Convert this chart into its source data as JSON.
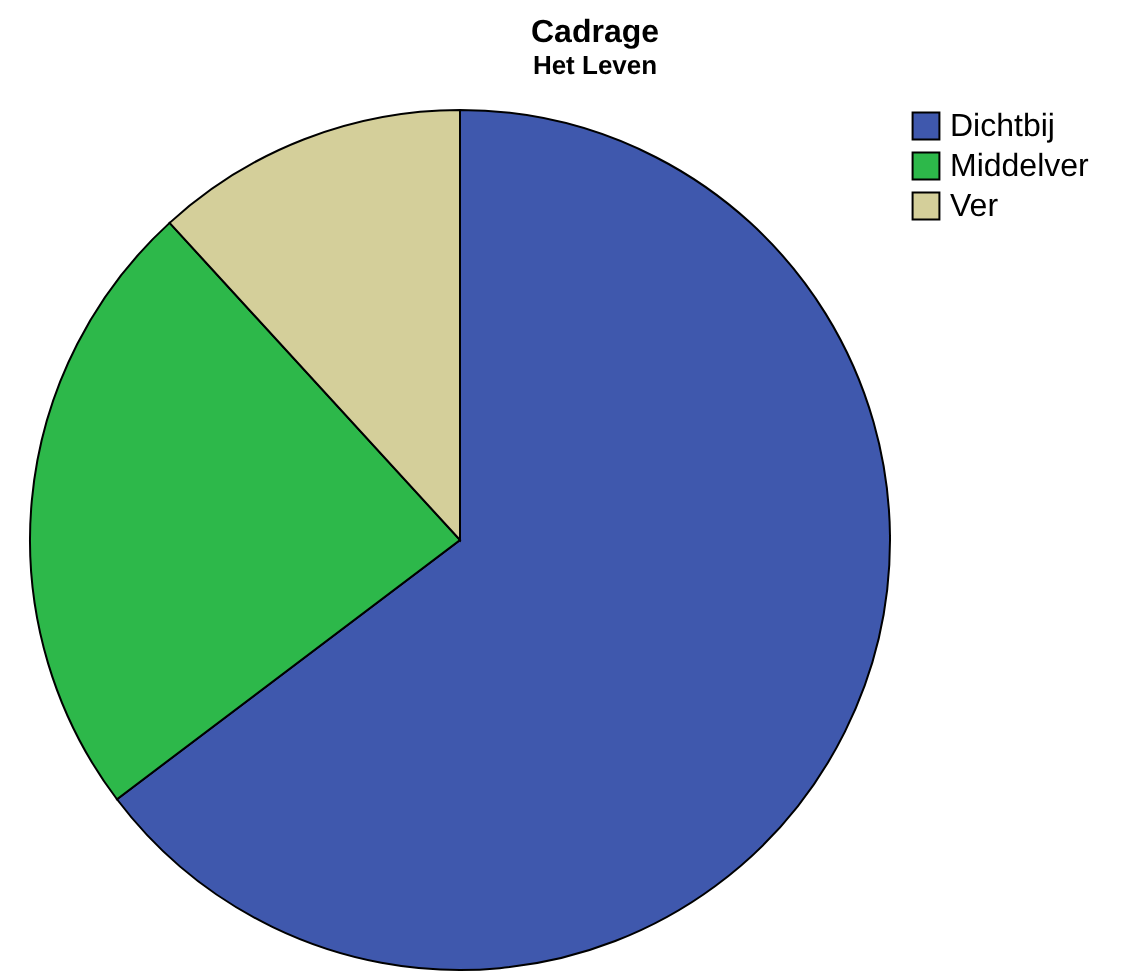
{
  "chart_data": {
    "type": "pie",
    "title": "Cadrage",
    "subtitle": "Het Leven",
    "categories": [
      "Dichtbij",
      "Middelver",
      "Ver"
    ],
    "values": [
      64.7,
      23.5,
      11.8
    ],
    "colors": [
      "#3f58ad",
      "#2db84a",
      "#d4cf9a"
    ],
    "legend": "top right"
  }
}
